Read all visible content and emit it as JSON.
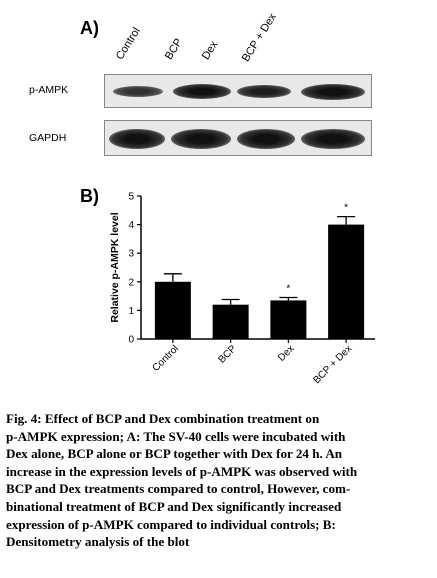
{
  "panel_a_label": "A)",
  "panel_b_label": "B)",
  "lanes": [
    "Control",
    "BCP",
    "Dex",
    "BCP + Dex"
  ],
  "blots": [
    {
      "name": "p-AMPK"
    },
    {
      "name": "GAPDH"
    }
  ],
  "chart_data": {
    "type": "bar",
    "categories": [
      "Control",
      "BCP",
      "Dex",
      "BCP + Dex"
    ],
    "values": [
      2.0,
      1.2,
      1.35,
      4.0
    ],
    "errors": [
      0.28,
      0.18,
      0.1,
      0.28
    ],
    "significance": [
      "",
      "",
      "*",
      "*"
    ],
    "ylabel": "Relative p-AMPK level",
    "ylim": [
      0,
      5
    ],
    "yticks": [
      "0",
      "1",
      "2",
      "3",
      "4",
      "5"
    ],
    "bar_color": "#000000",
    "grid": false
  },
  "caption": {
    "lines": [
      "Fig. 4: Effect of BCP and Dex combination treatment on",
      "p-AMPK expression; A: The SV-40 cells were incubated with",
      "Dex alone, BCP alone or BCP together with Dex for 24 h. An",
      "increase in the expression levels of p-AMPK was observed with",
      "BCP and Dex treatments compared to control, However, com-",
      "binational treatment of BCP and Dex significantly increased",
      "expression of p-AMPK compared to individual controls; B:",
      "Densitometry analysis of the blot"
    ]
  }
}
